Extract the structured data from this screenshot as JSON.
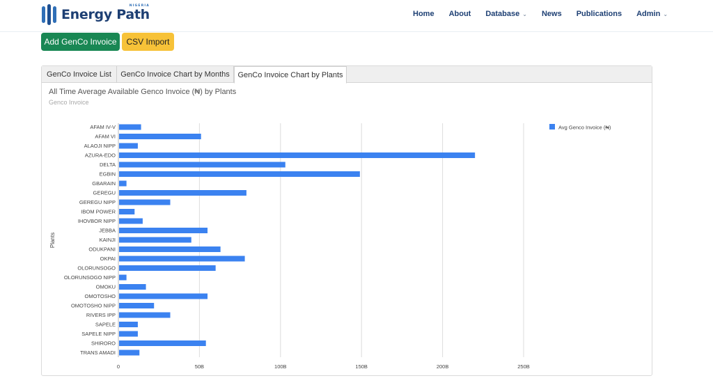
{
  "brand": {
    "name": "Energy Path",
    "tagline": "NIGERIA"
  },
  "nav": {
    "items": [
      {
        "label": "Home",
        "dropdown": false
      },
      {
        "label": "About",
        "dropdown": false
      },
      {
        "label": "Database",
        "dropdown": true
      },
      {
        "label": "News",
        "dropdown": false
      },
      {
        "label": "Publications",
        "dropdown": false
      },
      {
        "label": "Admin",
        "dropdown": true
      }
    ]
  },
  "actions": {
    "add_label": "Add GenCo Invoice",
    "import_label": "CSV Import"
  },
  "tabs": [
    {
      "label": "GenCo Invoice List",
      "active": false
    },
    {
      "label": "GenCo Invoice Chart by Months",
      "active": false
    },
    {
      "label": "GenCo Invoice Chart by Plants",
      "active": true
    }
  ],
  "chart": {
    "title": "All Time Average Available Genco Invoice (₦) by Plants",
    "subtitle": "Genco Invoice"
  },
  "colors": {
    "bar": "#3b82f0",
    "grid": "#dcdcdc",
    "primary_button": "#198754",
    "secondary_button": "#f7c238",
    "nav_text": "#1d3f73"
  },
  "chart_data": {
    "type": "bar",
    "orientation": "horizontal",
    "ylabel": "Plants",
    "xlabel": "",
    "xlim": [
      0,
      250
    ],
    "x_tick_labels": [
      "0",
      "50B",
      "100B",
      "150B",
      "200B",
      "250B"
    ],
    "x_ticks": [
      0,
      50,
      100,
      150,
      200,
      250
    ],
    "grid": true,
    "legend_position": "top-right",
    "categories": [
      "AFAM IV-V",
      "AFAM VI",
      "ALAOJI NIPP",
      "AZURA-EDO",
      "DELTA",
      "EGBIN",
      "GBARAIN",
      "GEREGU",
      "GEREGU NIPP",
      "IBOM POWER",
      "IHOVBOR NIPP",
      "JEBBA",
      "KAINJI",
      "ODUKPANI",
      "OKPAI",
      "OLORUNSOGO",
      "OLORUNSOGO NIPP",
      "OMOKU",
      "OMOTOSHO",
      "OMOTOSHO NIPP",
      "RIVERS IPP",
      "SAPELE",
      "SAPELE NIPP",
      "SHIRORO",
      "TRANS AMADI"
    ],
    "series": [
      {
        "name": "Avg Genco Invoice (₦)",
        "values": [
          14,
          51,
          12,
          220,
          103,
          149,
          5,
          79,
          32,
          10,
          15,
          55,
          45,
          63,
          78,
          60,
          5,
          17,
          55,
          22,
          32,
          12,
          12,
          54,
          13
        ]
      }
    ]
  }
}
